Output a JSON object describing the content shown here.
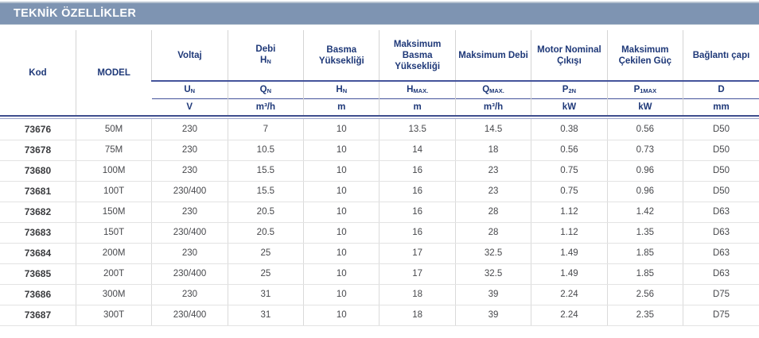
{
  "section": {
    "title": "TEKNİK ÖZELLİKLER"
  },
  "colors": {
    "bar_background": "#7E94B2",
    "header_text_navy": "#1E3878",
    "rule_navy": "#3F4E8E",
    "rule_light": "#9AA2C8",
    "grid_gray": "#D4D4D4",
    "data_text": "#47484C"
  },
  "table": {
    "row_header_columns": [
      {
        "label": "Kod"
      },
      {
        "label": "MODEL"
      }
    ],
    "columns": [
      {
        "label_lines": [
          "Voltaj"
        ],
        "symbol": {
          "base": "U",
          "sub": "N"
        },
        "unit": "V"
      },
      {
        "label_lines": [
          "Debi"
        ],
        "label_symbol": {
          "base": "H",
          "sub": "N"
        },
        "symbol": {
          "base": "Q",
          "sub": "N"
        },
        "unit": "m³/h"
      },
      {
        "label_lines": [
          "Basma",
          "Yüksekliği"
        ],
        "symbol": {
          "base": "H",
          "sub": "N"
        },
        "unit": "m"
      },
      {
        "label_lines": [
          "Maksimum",
          "Basma",
          "Yüksekliği"
        ],
        "symbol": {
          "base": "H",
          "sub": "MAX."
        },
        "unit": "m"
      },
      {
        "label_lines": [
          "Maksimum Debi"
        ],
        "symbol": {
          "base": "Q",
          "sub": "MAX."
        },
        "unit": "m³/h"
      },
      {
        "label_lines": [
          "Motor Nominal",
          "Çıkışı"
        ],
        "symbol": {
          "base": "P",
          "sub": "2N"
        },
        "unit": "kW"
      },
      {
        "label_lines": [
          "Maksimum",
          "Çekilen Güç"
        ],
        "symbol": {
          "base": "P",
          "sub": "1MAX"
        },
        "unit": "kW"
      },
      {
        "label_lines": [
          "Bağlantı çapı"
        ],
        "symbol": {
          "base": "D",
          "sub": ""
        },
        "unit": "mm"
      }
    ],
    "rows": [
      {
        "kod": "73676",
        "model": "50M",
        "values": [
          "230",
          "7",
          "10",
          "13.5",
          "14.5",
          "0.38",
          "0.56",
          "D50"
        ]
      },
      {
        "kod": "73678",
        "model": "75M",
        "values": [
          "230",
          "10.5",
          "10",
          "14",
          "18",
          "0.56",
          "0.73",
          "D50"
        ]
      },
      {
        "kod": "73680",
        "model": "100M",
        "values": [
          "230",
          "15.5",
          "10",
          "16",
          "23",
          "0.75",
          "0.96",
          "D50"
        ]
      },
      {
        "kod": "73681",
        "model": "100T",
        "values": [
          "230/400",
          "15.5",
          "10",
          "16",
          "23",
          "0.75",
          "0.96",
          "D50"
        ]
      },
      {
        "kod": "73682",
        "model": "150M",
        "values": [
          "230",
          "20.5",
          "10",
          "16",
          "28",
          "1.12",
          "1.42",
          "D63"
        ]
      },
      {
        "kod": "73683",
        "model": "150T",
        "values": [
          "230/400",
          "20.5",
          "10",
          "16",
          "28",
          "1.12",
          "1.35",
          "D63"
        ]
      },
      {
        "kod": "73684",
        "model": "200M",
        "values": [
          "230",
          "25",
          "10",
          "17",
          "32.5",
          "1.49",
          "1.85",
          "D63"
        ]
      },
      {
        "kod": "73685",
        "model": "200T",
        "values": [
          "230/400",
          "25",
          "10",
          "17",
          "32.5",
          "1.49",
          "1.85",
          "D63"
        ]
      },
      {
        "kod": "73686",
        "model": "300M",
        "values": [
          "230",
          "31",
          "10",
          "18",
          "39",
          "2.24",
          "2.56",
          "D75"
        ]
      },
      {
        "kod": "73687",
        "model": "300T",
        "values": [
          "230/400",
          "31",
          "10",
          "18",
          "39",
          "2.24",
          "2.35",
          "D75"
        ]
      }
    ]
  }
}
